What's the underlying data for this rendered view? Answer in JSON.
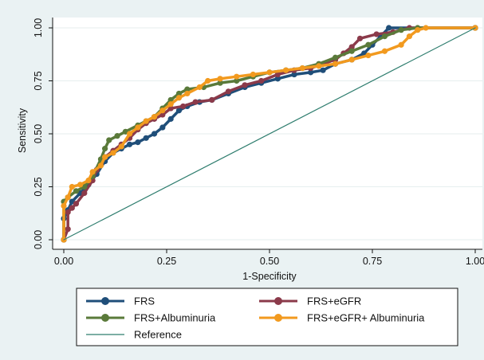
{
  "chart_data": {
    "type": "line",
    "title": "",
    "xlabel": "1-Specificity",
    "ylabel": "Sensitivity",
    "xlim": [
      0,
      1
    ],
    "ylim": [
      0,
      1
    ],
    "x_ticks": [
      "0.00",
      "0.25",
      "0.50",
      "0.75",
      "1.00"
    ],
    "y_ticks": [
      "0.00",
      "0.25",
      "0.50",
      "0.75",
      "1.00"
    ],
    "grid": true,
    "legend_position": "bottom",
    "series": [
      {
        "name": "FRS",
        "color": "#1f4e79",
        "marker": "circle",
        "points": [
          [
            0,
            0
          ],
          [
            0,
            0.1
          ],
          [
            0.01,
            0.14
          ],
          [
            0.02,
            0.18
          ],
          [
            0.04,
            0.22
          ],
          [
            0.06,
            0.26
          ],
          [
            0.08,
            0.31
          ],
          [
            0.1,
            0.37
          ],
          [
            0.12,
            0.41
          ],
          [
            0.14,
            0.43
          ],
          [
            0.16,
            0.45
          ],
          [
            0.18,
            0.46
          ],
          [
            0.2,
            0.48
          ],
          [
            0.22,
            0.5
          ],
          [
            0.24,
            0.53
          ],
          [
            0.26,
            0.57
          ],
          [
            0.28,
            0.61
          ],
          [
            0.3,
            0.63
          ],
          [
            0.33,
            0.65
          ],
          [
            0.36,
            0.66
          ],
          [
            0.4,
            0.69
          ],
          [
            0.44,
            0.72
          ],
          [
            0.48,
            0.74
          ],
          [
            0.52,
            0.76
          ],
          [
            0.56,
            0.78
          ],
          [
            0.6,
            0.79
          ],
          [
            0.63,
            0.8
          ],
          [
            0.66,
            0.83
          ],
          [
            0.7,
            0.85
          ],
          [
            0.73,
            0.88
          ],
          [
            0.75,
            0.92
          ],
          [
            0.77,
            0.96
          ],
          [
            0.79,
            1.0
          ],
          [
            1.0,
            1.0
          ]
        ]
      },
      {
        "name": "FRS+eGFR",
        "color": "#8b3a4a",
        "marker": "circle",
        "points": [
          [
            0,
            0
          ],
          [
            0.01,
            0.05
          ],
          [
            0.01,
            0.13
          ],
          [
            0.02,
            0.15
          ],
          [
            0.03,
            0.17
          ],
          [
            0.05,
            0.22
          ],
          [
            0.07,
            0.28
          ],
          [
            0.08,
            0.33
          ],
          [
            0.09,
            0.36
          ],
          [
            0.1,
            0.39
          ],
          [
            0.12,
            0.42
          ],
          [
            0.14,
            0.45
          ],
          [
            0.16,
            0.48
          ],
          [
            0.18,
            0.52
          ],
          [
            0.2,
            0.55
          ],
          [
            0.22,
            0.57
          ],
          [
            0.24,
            0.59
          ],
          [
            0.26,
            0.62
          ],
          [
            0.29,
            0.63
          ],
          [
            0.32,
            0.65
          ],
          [
            0.36,
            0.66
          ],
          [
            0.4,
            0.7
          ],
          [
            0.44,
            0.73
          ],
          [
            0.48,
            0.75
          ],
          [
            0.52,
            0.78
          ],
          [
            0.56,
            0.8
          ],
          [
            0.6,
            0.81
          ],
          [
            0.63,
            0.83
          ],
          [
            0.66,
            0.85
          ],
          [
            0.68,
            0.88
          ],
          [
            0.7,
            0.91
          ],
          [
            0.72,
            0.95
          ],
          [
            0.76,
            0.97
          ],
          [
            0.8,
            0.98
          ],
          [
            0.84,
            1.0
          ],
          [
            1.0,
            1.0
          ]
        ]
      },
      {
        "name": "FRS+Albuminuria",
        "color": "#5a7a3a",
        "marker": "circle",
        "points": [
          [
            0,
            0
          ],
          [
            0,
            0.18
          ],
          [
            0.01,
            0.2
          ],
          [
            0.03,
            0.23
          ],
          [
            0.05,
            0.25
          ],
          [
            0.07,
            0.3
          ],
          [
            0.09,
            0.38
          ],
          [
            0.1,
            0.43
          ],
          [
            0.11,
            0.47
          ],
          [
            0.13,
            0.49
          ],
          [
            0.15,
            0.51
          ],
          [
            0.18,
            0.54
          ],
          [
            0.2,
            0.56
          ],
          [
            0.22,
            0.58
          ],
          [
            0.24,
            0.62
          ],
          [
            0.26,
            0.66
          ],
          [
            0.28,
            0.69
          ],
          [
            0.3,
            0.71
          ],
          [
            0.34,
            0.72
          ],
          [
            0.38,
            0.74
          ],
          [
            0.42,
            0.75
          ],
          [
            0.46,
            0.77
          ],
          [
            0.5,
            0.79
          ],
          [
            0.54,
            0.8
          ],
          [
            0.58,
            0.81
          ],
          [
            0.62,
            0.83
          ],
          [
            0.66,
            0.86
          ],
          [
            0.7,
            0.89
          ],
          [
            0.74,
            0.92
          ],
          [
            0.78,
            0.96
          ],
          [
            0.82,
            0.99
          ],
          [
            0.86,
            1.0
          ],
          [
            1.0,
            1.0
          ]
        ]
      },
      {
        "name": "FRS+eGFR+ Albuminuria",
        "color": "#f29a1f",
        "marker": "circle",
        "points": [
          [
            0,
            0
          ],
          [
            0,
            0.16
          ],
          [
            0.01,
            0.2
          ],
          [
            0.02,
            0.25
          ],
          [
            0.04,
            0.26
          ],
          [
            0.06,
            0.28
          ],
          [
            0.07,
            0.32
          ],
          [
            0.09,
            0.35
          ],
          [
            0.1,
            0.39
          ],
          [
            0.12,
            0.41
          ],
          [
            0.14,
            0.44
          ],
          [
            0.16,
            0.5
          ],
          [
            0.18,
            0.53
          ],
          [
            0.2,
            0.56
          ],
          [
            0.22,
            0.58
          ],
          [
            0.24,
            0.61
          ],
          [
            0.26,
            0.64
          ],
          [
            0.28,
            0.67
          ],
          [
            0.3,
            0.69
          ],
          [
            0.33,
            0.72
          ],
          [
            0.35,
            0.75
          ],
          [
            0.38,
            0.76
          ],
          [
            0.42,
            0.77
          ],
          [
            0.46,
            0.78
          ],
          [
            0.5,
            0.79
          ],
          [
            0.54,
            0.8
          ],
          [
            0.58,
            0.81
          ],
          [
            0.62,
            0.82
          ],
          [
            0.66,
            0.83
          ],
          [
            0.7,
            0.85
          ],
          [
            0.74,
            0.87
          ],
          [
            0.78,
            0.89
          ],
          [
            0.82,
            0.92
          ],
          [
            0.84,
            0.96
          ],
          [
            0.86,
            0.99
          ],
          [
            0.88,
            1.0
          ],
          [
            1.0,
            1.0
          ]
        ]
      },
      {
        "name": "Reference",
        "color": "#2e7d6e",
        "marker": "none",
        "points": [
          [
            0,
            0
          ],
          [
            1,
            1
          ]
        ]
      }
    ]
  }
}
